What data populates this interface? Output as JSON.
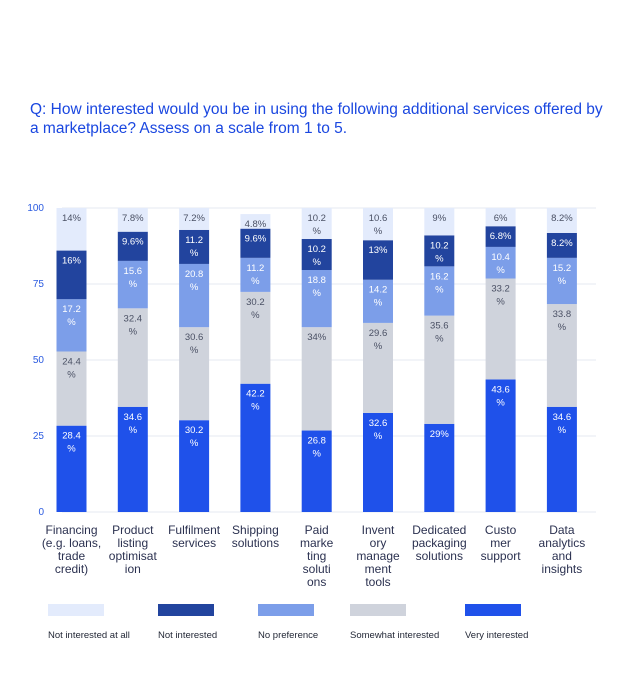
{
  "question": "Q: How interested would you be in using the following additional services offered by a marketplace? Assess on a scale from 1 to 5.",
  "chart_data": {
    "type": "bar",
    "stacked": true,
    "ylim": [
      0,
      100
    ],
    "yticks": [
      "0",
      "25",
      "50",
      "75",
      "100"
    ],
    "grid": true,
    "legend_position": "bottom",
    "categories": [
      "Financing (e.g. loans, trade credit)",
      "Product listing optimisation",
      "Fulfilment services",
      "Shipping solutions",
      "Paid marketing solutions",
      "Inventory management tools",
      "Dedicated packaging solutions",
      "Customer support",
      "Data analytics and insights"
    ],
    "category_lines": [
      [
        "Financing",
        "(e.g. loans,",
        "trade",
        "credit)"
      ],
      [
        "Product",
        "listing",
        "optimisat",
        "ion"
      ],
      [
        "Fulfilment",
        "services"
      ],
      [
        "Shipping",
        "solutions"
      ],
      [
        "Paid",
        "marke",
        "ting",
        "soluti",
        "ons"
      ],
      [
        "Invent",
        "ory",
        "manage",
        "ment",
        "tools"
      ],
      [
        "Dedicated",
        "packaging",
        "solutions"
      ],
      [
        "Custo",
        "mer",
        "support"
      ],
      [
        "Data",
        "analytics",
        "and",
        "insights"
      ]
    ],
    "series": [
      {
        "name": "Very interested",
        "color": "#1f51ea",
        "text_color": "#ffffff",
        "values": [
          28.4,
          34.6,
          30.2,
          42.2,
          26.8,
          32.6,
          29,
          43.6,
          34.6
        ],
        "labels": [
          "28.4 %",
          "34.6 %",
          "30.2 %",
          "42.2 %",
          "26.8 %",
          "32.6 %",
          "29%",
          "43.6 %",
          "34.6 %"
        ]
      },
      {
        "name": "Somewhat interested",
        "color": "#cfd3dc",
        "text_color": "#4a5064",
        "values": [
          24.4,
          32.4,
          30.6,
          30.2,
          34,
          29.6,
          35.6,
          33.2,
          33.8
        ],
        "labels": [
          "24.4 %",
          "32.4 %",
          "30.6 %",
          "30.2 %",
          "34%",
          "29.6 %",
          "35.6 %",
          "33.2 %",
          "33.8 %"
        ]
      },
      {
        "name": "No preference",
        "color": "#7c9ee9",
        "text_color": "#ffffff",
        "values": [
          17.2,
          15.6,
          20.8,
          11.2,
          18.8,
          14.2,
          16.2,
          10.4,
          15.2
        ],
        "labels": [
          "17.2 %",
          "15.6 %",
          "20.8 %",
          "11.2 %",
          "18.8 %",
          "14.2 %",
          "16.2 %",
          "10.4 %",
          "15.2 %"
        ]
      },
      {
        "name": "Not interested",
        "color": "#22449e",
        "text_color": "#ffffff",
        "values": [
          16,
          9.6,
          11.2,
          9.6,
          10.2,
          13,
          10.2,
          6.8,
          8.2
        ],
        "labels": [
          "16%",
          "9.6%",
          "11.2 %",
          "9.6%",
          "10.2 %",
          "13%",
          "10.2 %",
          "6.8%",
          "8.2%"
        ]
      },
      {
        "name": "Not interested at all",
        "color": "#e3ebfc",
        "text_color": "#4a5064",
        "values": [
          14,
          7.8,
          7.2,
          4.8,
          10.2,
          10.6,
          9,
          6,
          8.2
        ],
        "labels": [
          "14%",
          "7.8%",
          "7.2%",
          "4.8%",
          "10.2 %",
          "10.6 %",
          "9%",
          "6%",
          "8.2%"
        ]
      }
    ],
    "legend_order": [
      "Not interested at all",
      "Not interested",
      "No preference",
      "Somewhat interested",
      "Very interested"
    ]
  }
}
